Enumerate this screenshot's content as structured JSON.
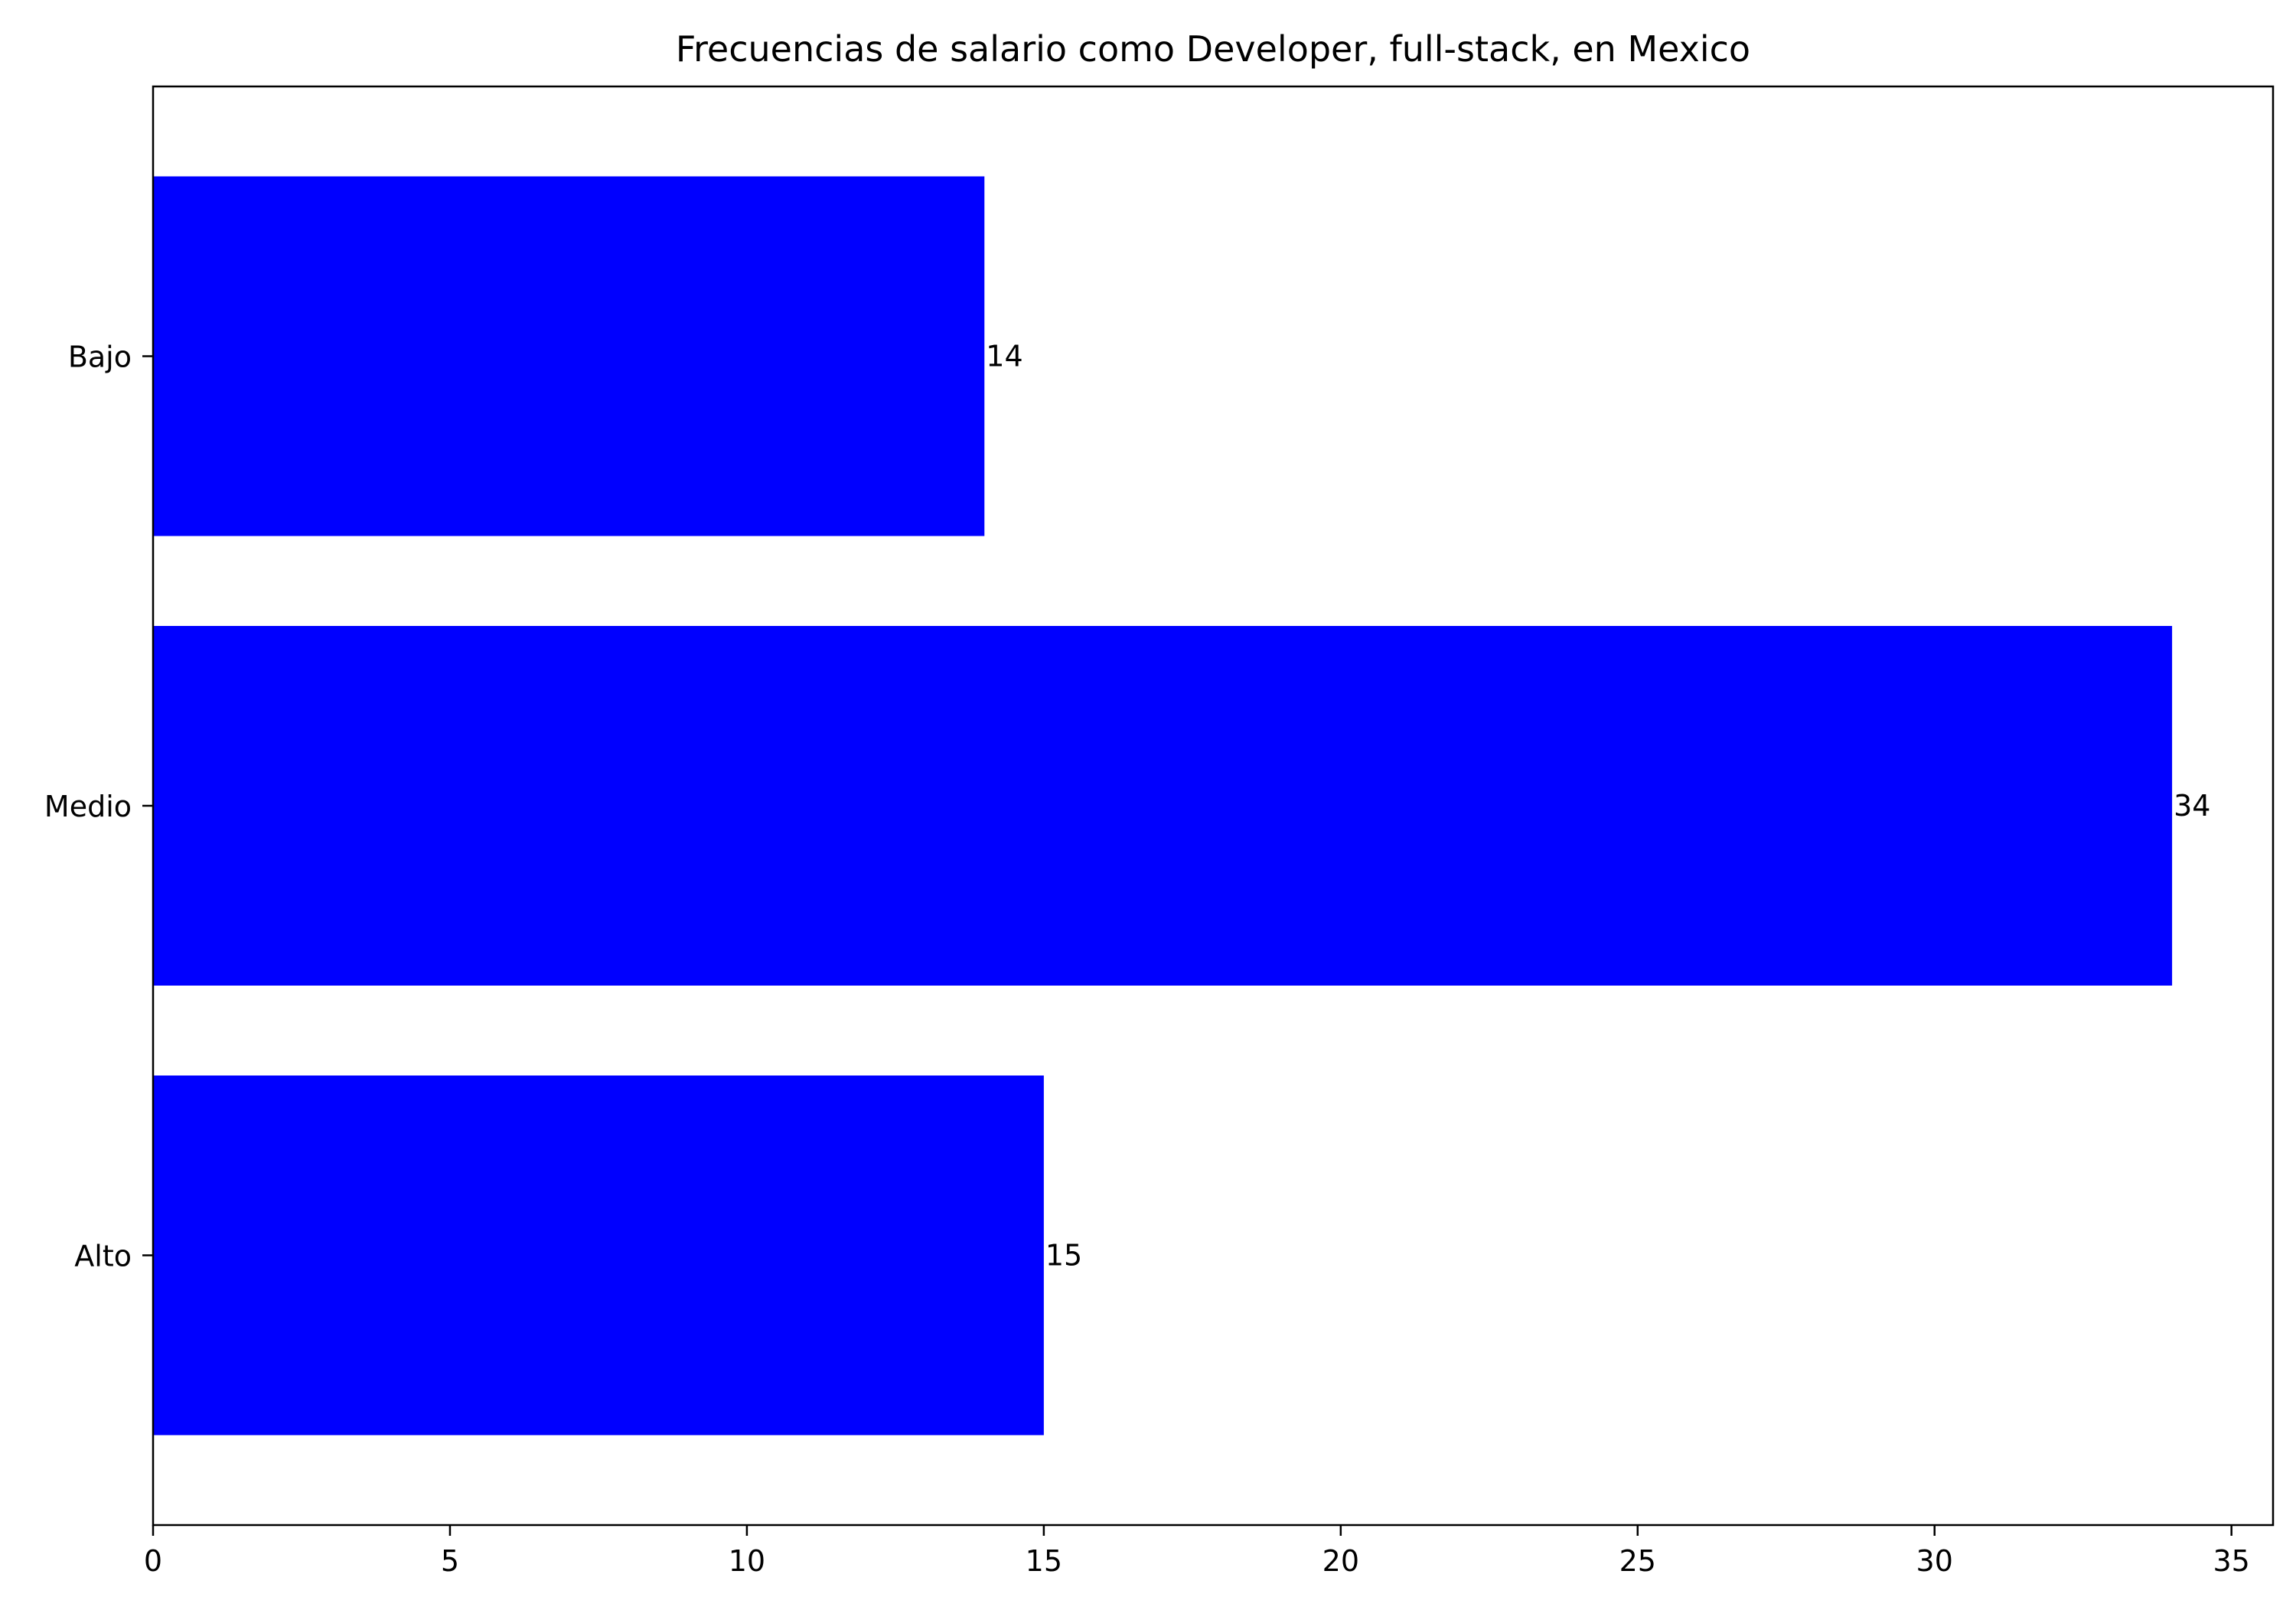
{
  "chart_data": {
    "type": "bar",
    "orientation": "horizontal",
    "title": "Frecuencias de salario como Developer, full-stack, en Mexico",
    "xlabel": "",
    "ylabel": "",
    "categories": [
      "Alto",
      "Medio",
      "Bajo"
    ],
    "values": [
      15,
      34,
      14
    ],
    "data_labels": [
      "15",
      "34",
      "14"
    ],
    "xlim": [
      0,
      35.7
    ],
    "xticks": [
      0,
      5,
      10,
      15,
      20,
      25,
      30,
      35
    ],
    "xtick_labels": [
      "0",
      "5",
      "10",
      "15",
      "20",
      "25",
      "30",
      "35"
    ],
    "grid": false,
    "legend": "none",
    "colors": {
      "bar": "#0000ff",
      "axis": "#000000",
      "background": "#ffffff"
    }
  }
}
